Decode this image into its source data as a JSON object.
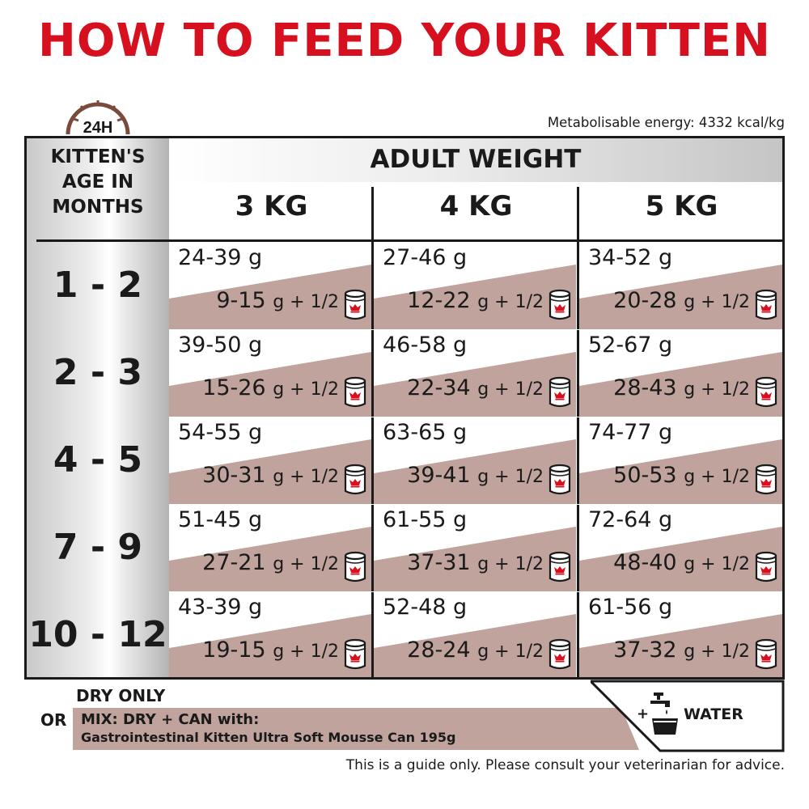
{
  "title": "HOW TO FEED YOUR KITTEN",
  "title_color": "#d6101e",
  "clock_label": "24H",
  "energy": "Metabolisable energy: 4332 kcal/kg",
  "age_header": [
    "KITTEN'S",
    "AGE IN",
    "MONTHS"
  ],
  "adult_weight_header": "ADULT WEIGHT",
  "weights": [
    "3 KG",
    "4 KG",
    "5 KG"
  ],
  "unit_plus": "g + 1/2",
  "can_icon": "wet-food-can-icon",
  "accent_bar_color": "#bfa39c",
  "rows": [
    {
      "age": "1 - 2",
      "cells": [
        {
          "dry": "24-39 g",
          "mix": "9-15"
        },
        {
          "dry": "27-46 g",
          "mix": "12-22"
        },
        {
          "dry": "34-52 g",
          "mix": "20-28"
        }
      ]
    },
    {
      "age": "2 - 3",
      "cells": [
        {
          "dry": "39-50 g",
          "mix": "15-26"
        },
        {
          "dry": "46-58 g",
          "mix": "22-34"
        },
        {
          "dry": "52-67 g",
          "mix": "28-43"
        }
      ]
    },
    {
      "age": "4 - 5",
      "cells": [
        {
          "dry": "54-55 g",
          "mix": "30-31"
        },
        {
          "dry": "63-65 g",
          "mix": "39-41"
        },
        {
          "dry": "74-77 g",
          "mix": "50-53"
        }
      ]
    },
    {
      "age": "7 - 9",
      "cells": [
        {
          "dry": "51-45 g",
          "mix": "27-21"
        },
        {
          "dry": "61-55 g",
          "mix": "37-31"
        },
        {
          "dry": "72-64 g",
          "mix": "48-40"
        }
      ]
    },
    {
      "age": "10 - 12",
      "cells": [
        {
          "dry": "43-39 g",
          "mix": "19-15"
        },
        {
          "dry": "52-48 g",
          "mix": "28-24"
        },
        {
          "dry": "61-56 g",
          "mix": "37-32"
        }
      ]
    }
  ],
  "legend": {
    "dry_only": "DRY ONLY",
    "or": "OR",
    "mix_line1": "MIX: DRY + CAN with:",
    "mix_line2": "Gastrointestinal Kitten Ultra Soft Mousse Can 195g",
    "water_plus": "+",
    "water_icon": "water-tap-bowl-icon",
    "water": "WATER"
  },
  "disclaimer": "This is a guide only. Please consult your veterinarian for advice."
}
